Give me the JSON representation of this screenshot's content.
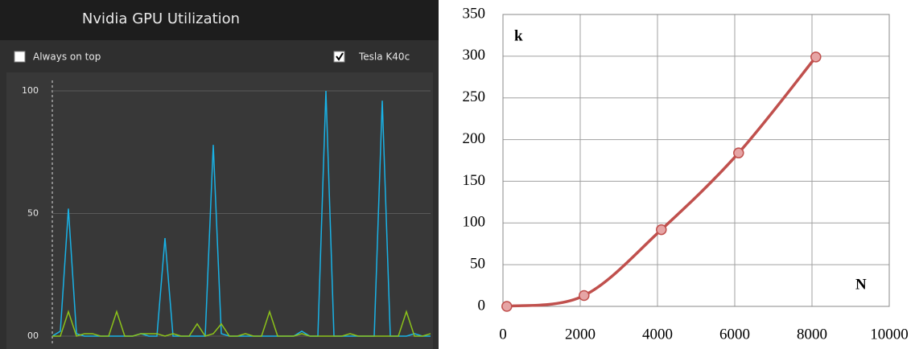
{
  "window": {
    "title": "Nvidia GPU Utilization",
    "checkboxes": [
      {
        "label": "Always on top",
        "checked": false
      },
      {
        "label": "Tesla K40c",
        "checked": true
      }
    ]
  },
  "chart_data": [
    {
      "type": "line",
      "grid": true,
      "ylim": [
        0,
        100
      ],
      "yticks": [
        {
          "value": 0,
          "label": "00"
        },
        50,
        100
      ],
      "series": [
        {
          "color": "#19b2e6",
          "values": [
            0,
            2,
            52,
            1,
            0,
            0,
            0,
            0,
            0,
            0,
            0,
            1,
            0,
            0,
            40,
            0,
            0,
            0,
            0,
            0,
            78,
            1,
            0,
            0,
            0,
            0,
            0,
            0,
            0,
            0,
            0,
            2,
            0,
            0,
            100,
            0,
            0,
            0,
            0,
            0,
            0,
            96,
            0,
            0,
            0,
            1,
            0,
            0
          ]
        },
        {
          "color": "#8cc21a",
          "values": [
            0,
            0,
            10,
            0,
            1,
            1,
            0,
            0,
            10,
            0,
            0,
            1,
            1,
            1,
            0,
            1,
            0,
            0,
            5,
            0,
            1,
            5,
            0,
            0,
            1,
            0,
            0,
            10,
            0,
            0,
            0,
            1,
            0,
            0,
            0,
            0,
            0,
            1,
            0,
            0,
            0,
            0,
            0,
            0,
            10,
            0,
            0,
            1
          ]
        }
      ]
    },
    {
      "type": "line",
      "grid": true,
      "smooth": true,
      "markers": true,
      "x_label": "N",
      "y_label": "k",
      "xlim": [
        0,
        10000
      ],
      "xticks": [
        0,
        2000,
        4000,
        6000,
        8000,
        10000
      ],
      "ylim": [
        0,
        350
      ],
      "yticks": [
        0,
        50,
        100,
        150,
        200,
        250,
        300,
        350
      ],
      "x": [
        100,
        2100,
        4100,
        6100,
        8100
      ],
      "series": [
        {
          "color": "#c0504d",
          "marker_color": "#e6a5a5",
          "values": [
            0,
            13,
            92,
            184,
            299
          ]
        }
      ]
    }
  ]
}
